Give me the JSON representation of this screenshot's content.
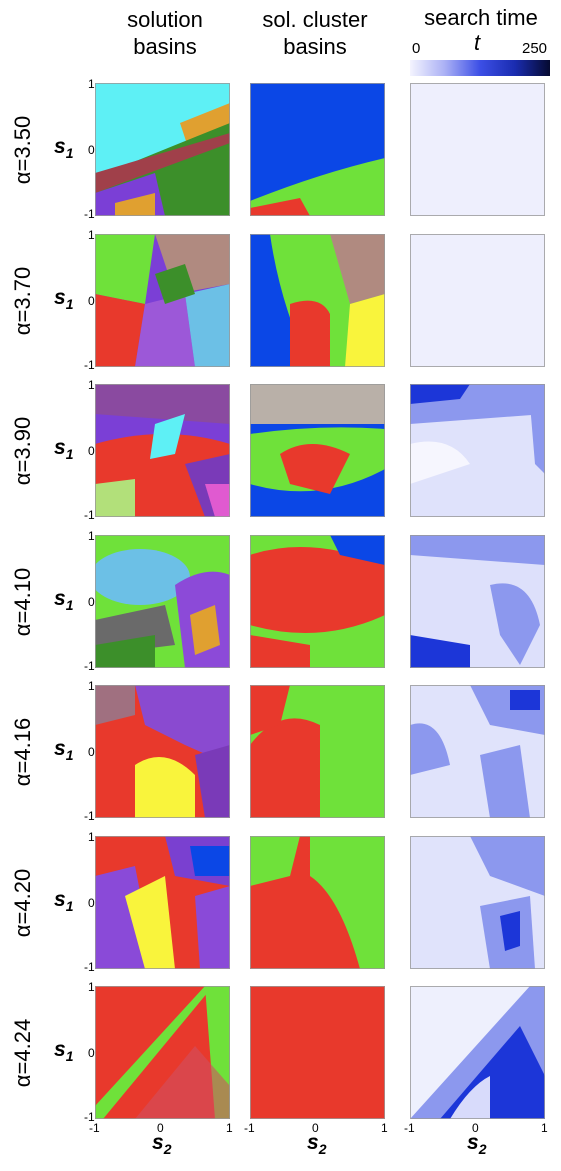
{
  "headers": {
    "col1": "solution\nbasins",
    "col2": "sol. cluster\nbasins",
    "col3": "search time"
  },
  "colorbar": {
    "min": "0",
    "max": "250",
    "variable": "t"
  },
  "axis": {
    "y_label": "s",
    "y_sub": "1",
    "x_label": "s",
    "x_sub": "2",
    "ticks": {
      "neg": "-1",
      "zero": "0",
      "pos": "1"
    }
  },
  "rows": [
    {
      "alpha": "α=3.50"
    },
    {
      "alpha": "α=3.70"
    },
    {
      "alpha": "α=3.90"
    },
    {
      "alpha": "α=4.10"
    },
    {
      "alpha": "α=4.16"
    },
    {
      "alpha": "α=4.20"
    },
    {
      "alpha": "α=4.24"
    }
  ],
  "colors": {
    "red": "#e8392c",
    "green": "#6fe13a",
    "blue": "#0b47e6",
    "yellow": "#f9f43c",
    "cyan": "#5ef0f5",
    "purple": "#7b3fd6",
    "brown": "#b08a80",
    "lightblue": "#6cc0e6",
    "darkgreen": "#3c8f2a",
    "orange": "#e0a030",
    "searchlight": "#eeeffd",
    "searchmid": "#8c98ee",
    "searchdark": "#1c36d8"
  }
}
